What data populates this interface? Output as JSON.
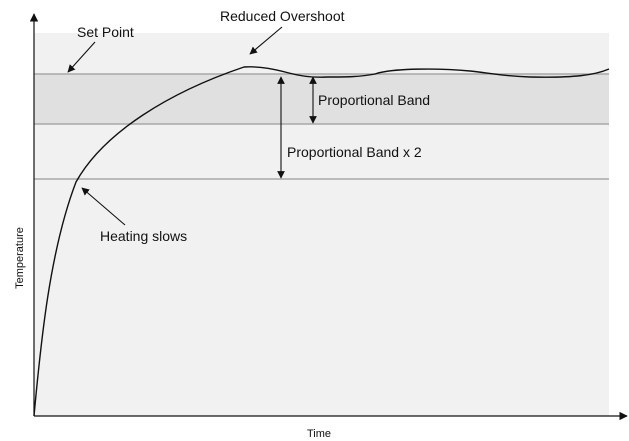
{
  "labels": {
    "set_point": "Set Point",
    "reduced_overshoot": "Reduced Overshoot",
    "proportional_band": "Proportional Band",
    "proportional_band_x2": "Proportional Band x 2",
    "heating_slows": "Heating slows",
    "y_axis": "Temperature",
    "x_axis": "Time"
  },
  "colors": {
    "plot_background": "#f1f1f1",
    "band_fill": "#e0e0e0",
    "reference_lines": "#a8a8a8",
    "curve": "#111111",
    "axes": "#111111",
    "text": "#111111"
  }
}
